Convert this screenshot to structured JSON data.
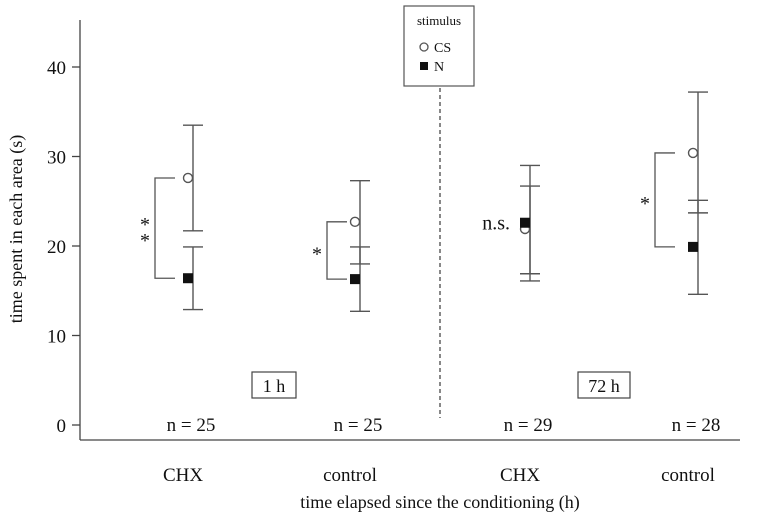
{
  "chart_data": {
    "type": "scatter",
    "title": "",
    "xlabel": "time elapsed since the conditioning (h)",
    "ylabel": "time spent in each area (s)",
    "ylim": [
      0,
      44
    ],
    "yticks": [
      0,
      10,
      20,
      30,
      40
    ],
    "grid": false,
    "categories": [
      "CHX",
      "control",
      "CHX",
      "control"
    ],
    "series": [
      {
        "name": "CS",
        "marker": "open-circle",
        "values": [
          27.6,
          22.7,
          21.9,
          30.4
        ],
        "error_low": [
          21.7,
          18.0,
          16.9,
          23.7
        ],
        "error_high": [
          33.5,
          27.3,
          26.7,
          37.2
        ]
      },
      {
        "name": "N",
        "marker": "filled-square",
        "values": [
          16.4,
          16.3,
          22.6,
          19.9
        ],
        "error_low": [
          12.9,
          12.7,
          16.1,
          14.6
        ],
        "error_high": [
          19.9,
          19.9,
          29.0,
          25.1
        ]
      }
    ],
    "n_labels": [
      "n = 25",
      "n = 25",
      "n = 29",
      "n = 28"
    ],
    "significance": [
      "* *",
      "*",
      "n.s.",
      "*"
    ],
    "time_groups": [
      "1 h",
      "72 h"
    ],
    "legend": {
      "title": "stimulus",
      "position": "top-center",
      "items": [
        "CS",
        "N"
      ]
    }
  }
}
